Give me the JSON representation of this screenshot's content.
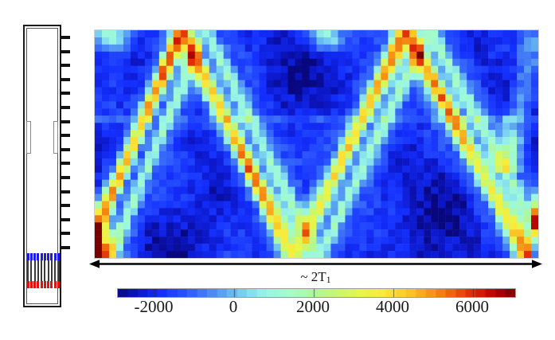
{
  "figure": {
    "background": "#ffffff",
    "axis_arrow_label": {
      "text": "~ 2T",
      "sub": "1"
    }
  },
  "apparatus": {
    "name": "sample-tube-schematic",
    "scale_tick_count": 16,
    "scale_tick_color": "#121212",
    "window_slot_count": 2,
    "comb": {
      "tooth_count": 10,
      "top_cap_color": "#1d1de0",
      "bottom_cap_color": "#e01212",
      "tooth_color": "#3a3a3a"
    }
  },
  "chart_data": {
    "type": "heatmap",
    "title": "",
    "xlabel": "~ 2T1",
    "ylabel": "",
    "grid": {
      "cols": 62,
      "rows": 32
    },
    "value_range": [
      -2920,
      7060
    ],
    "colorbar": {
      "tick_values": [
        -2000,
        0,
        2000,
        4000,
        6000
      ],
      "tick_labels": [
        "-2000",
        "0",
        "2000",
        "4000",
        "6000"
      ],
      "segments": 40,
      "orientation": "horizontal"
    },
    "colormap_stops": [
      [
        -2920,
        "#08077e"
      ],
      [
        -2400,
        "#0c17c8"
      ],
      [
        -1800,
        "#1430ff"
      ],
      [
        -1200,
        "#2b55ff"
      ],
      [
        -600,
        "#4a86f5"
      ],
      [
        -100,
        "#63b4f0"
      ],
      [
        300,
        "#7fd7f2"
      ],
      [
        800,
        "#98f5e4"
      ],
      [
        1400,
        "#a4fcc8"
      ],
      [
        2000,
        "#aef79e"
      ],
      [
        2600,
        "#c8f76e"
      ],
      [
        3200,
        "#e8f54a"
      ],
      [
        3800,
        "#fce93a"
      ],
      [
        4400,
        "#fcc426"
      ],
      [
        5000,
        "#f79016"
      ],
      [
        5500,
        "#ed5f0a"
      ],
      [
        6000,
        "#e02806"
      ],
      [
        6400,
        "#c40a02"
      ],
      [
        6800,
        "#990000"
      ],
      [
        7060,
        "#7a0000"
      ]
    ],
    "pattern": {
      "ridge": {
        "path": [
          [
            -0.022,
            1
          ],
          [
            0.195,
            0
          ],
          [
            0.45,
            1
          ],
          [
            0.7,
            0
          ],
          [
            0.978,
            1
          ],
          [
            1.06,
            0
          ]
        ],
        "sigma_v": 0.05,
        "amplitude_points": [
          [
            0.0,
            6800
          ],
          [
            0.05,
            6100
          ],
          [
            0.09,
            5200
          ],
          [
            0.13,
            6200
          ],
          [
            0.16,
            6800
          ],
          [
            0.2,
            7050
          ],
          [
            0.245,
            5600
          ],
          [
            0.3,
            5200
          ],
          [
            0.345,
            6900
          ],
          [
            0.385,
            6300
          ],
          [
            0.43,
            4700
          ],
          [
            0.46,
            4300
          ],
          [
            0.52,
            4600
          ],
          [
            0.56,
            5600
          ],
          [
            0.6,
            5100
          ],
          [
            0.645,
            5900
          ],
          [
            0.675,
            6500
          ],
          [
            0.705,
            7050
          ],
          [
            0.74,
            5800
          ],
          [
            0.775,
            6800
          ],
          [
            0.815,
            6400
          ],
          [
            0.86,
            4700
          ],
          [
            0.9,
            4500
          ],
          [
            0.94,
            5200
          ],
          [
            0.975,
            6900
          ],
          [
            1.0,
            5000
          ]
        ]
      },
      "secondary_ridge": {
        "offset_u": 0.055,
        "amplitude": 2400,
        "sigma_v": 0.045
      },
      "background": {
        "base": -1100,
        "blob_depth": -1750
      },
      "blobs": [
        {
          "u": 0.035,
          "v": 0.02,
          "amp": 3600,
          "su": 0.035,
          "sv": 0.05
        },
        {
          "u": 0.52,
          "v": 0.03,
          "amp": 3200,
          "su": 0.03,
          "sv": 0.05
        },
        {
          "u": 0.005,
          "v": 0.97,
          "amp": 6200,
          "su": 0.028,
          "sv": 0.07
        }
      ],
      "edge_stripe": {
        "u0": 0.925,
        "v0": 0.6,
        "u1": 1.01,
        "v1": -0.1,
        "amp": 3000,
        "sigma": 0.022
      },
      "seam_row_v": 0.4,
      "noise_amp": 420
    }
  }
}
